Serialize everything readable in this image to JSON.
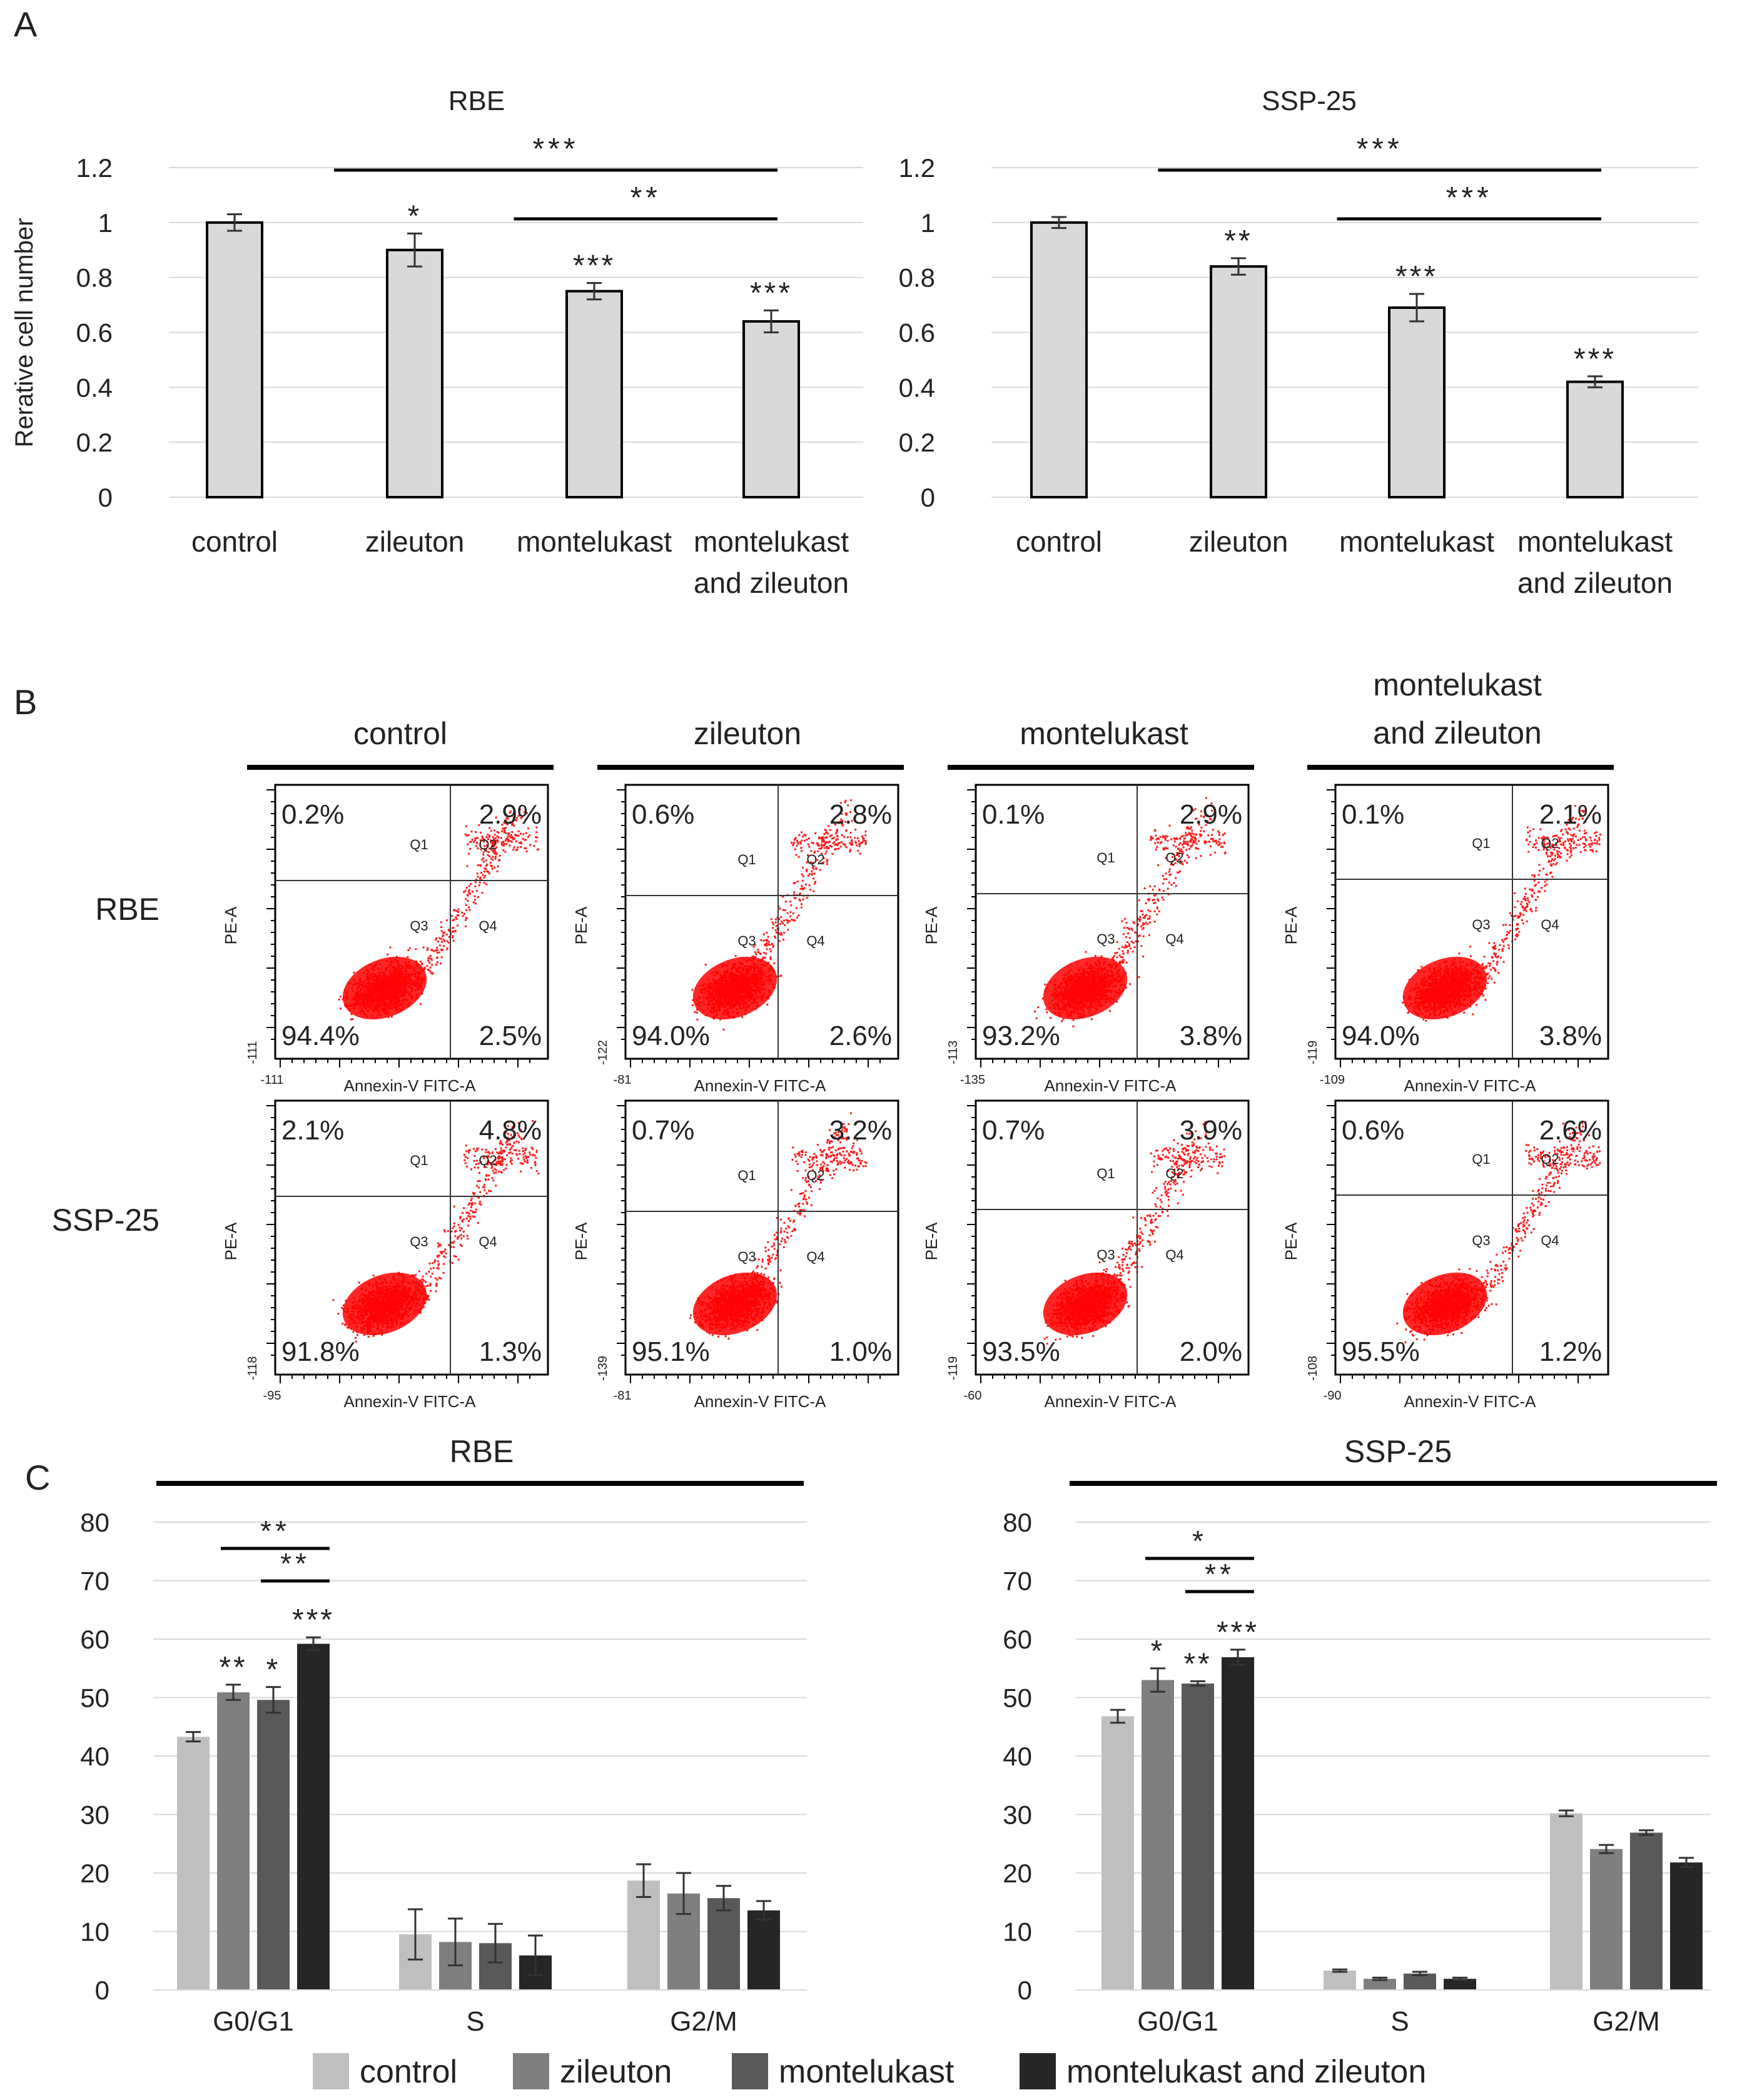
{
  "panels": {
    "a": "A",
    "b": "B",
    "c": "C"
  },
  "chart_data": [
    {
      "id": "A1",
      "type": "bar",
      "title": "RBE",
      "ylabel": "Rerative cell number",
      "categories": [
        "control",
        "zileuton",
        "montelukast",
        "montelukast and zileuton"
      ],
      "cat_lines": [
        [
          "control"
        ],
        [
          "zileuton"
        ],
        [
          "montelukast"
        ],
        [
          "montelukast",
          "and zileuton"
        ]
      ],
      "values": [
        1.0,
        0.9,
        0.75,
        0.64
      ],
      "errors": [
        0.03,
        0.06,
        0.03,
        0.04
      ],
      "ylim": [
        0,
        1.2
      ],
      "yticks": [
        "0",
        "0.2",
        "0.4",
        "0.6",
        "0.8",
        "1",
        "1.2"
      ],
      "stars": [
        "",
        "*",
        "***",
        "***"
      ],
      "brackets": [
        {
          "from": 1,
          "to": 3,
          "label": "***"
        },
        {
          "from": 2,
          "to": 3,
          "label": "**"
        }
      ]
    },
    {
      "id": "A2",
      "type": "bar",
      "title": "SSP-25",
      "ylabel": "",
      "categories": [
        "control",
        "zileuton",
        "montelukast",
        "montelukast and zileuton"
      ],
      "cat_lines": [
        [
          "control"
        ],
        [
          "zileuton"
        ],
        [
          "montelukast"
        ],
        [
          "montelukast",
          "and zileuton"
        ]
      ],
      "values": [
        1.0,
        0.84,
        0.69,
        0.42
      ],
      "errors": [
        0.02,
        0.03,
        0.05,
        0.02
      ],
      "ylim": [
        0,
        1.2
      ],
      "yticks": [
        "0",
        "0.2",
        "0.4",
        "0.6",
        "0.8",
        "1",
        "1.2"
      ],
      "stars": [
        "",
        "**",
        "***",
        "***"
      ],
      "brackets": [
        {
          "from": 1,
          "to": 3,
          "label": "***"
        },
        {
          "from": 2,
          "to": 3,
          "label": "***"
        }
      ]
    },
    {
      "id": "C1",
      "type": "bar",
      "title": "RBE",
      "categories": [
        "G0/G1",
        "S",
        "G2/M"
      ],
      "ylim": [
        0,
        80
      ],
      "yticks": [
        "0",
        "10",
        "20",
        "30",
        "40",
        "50",
        "60",
        "70",
        "80"
      ],
      "series": [
        {
          "name": "control",
          "color": "#bfbfbf",
          "values": [
            43.3,
            9.5,
            18.7
          ],
          "errors": [
            0.8,
            4.3,
            2.8
          ]
        },
        {
          "name": "zileuton",
          "color": "#7f7f7f",
          "values": [
            50.9,
            8.2,
            16.5
          ],
          "errors": [
            1.3,
            4.0,
            3.5
          ]
        },
        {
          "name": "montelukast",
          "color": "#595959",
          "values": [
            49.6,
            8.0,
            15.7
          ],
          "errors": [
            2.2,
            3.3,
            2.1
          ]
        },
        {
          "name": "montelukast and zileuton",
          "color": "#262626",
          "values": [
            59.2,
            5.9,
            13.6
          ],
          "errors": [
            1.1,
            3.4,
            1.6
          ]
        }
      ],
      "stars": [
        [
          "",
          "**",
          "*",
          "***"
        ],
        [
          "",
          "",
          "",
          ""
        ],
        [
          "",
          "",
          "",
          ""
        ]
      ],
      "brackets": [
        {
          "from": 1,
          "to": 3,
          "label": "**"
        },
        {
          "from": 2,
          "to": 3,
          "label": "**"
        }
      ]
    },
    {
      "id": "C2",
      "type": "bar",
      "title": "SSP-25",
      "categories": [
        "G0/G1",
        "S",
        "G2/M"
      ],
      "ylim": [
        0,
        80
      ],
      "yticks": [
        "0",
        "10",
        "20",
        "30",
        "40",
        "50",
        "60",
        "70",
        "80"
      ],
      "series": [
        {
          "name": "control",
          "color": "#bfbfbf",
          "values": [
            46.8,
            3.3,
            30.2
          ],
          "errors": [
            1.1,
            0.2,
            0.5
          ]
        },
        {
          "name": "zileuton",
          "color": "#7f7f7f",
          "values": [
            53.0,
            1.9,
            24.1
          ],
          "errors": [
            2.0,
            0.2,
            0.7
          ]
        },
        {
          "name": "montelukast",
          "color": "#595959",
          "values": [
            52.4,
            2.8,
            26.9
          ],
          "errors": [
            0.4,
            0.3,
            0.4
          ]
        },
        {
          "name": "montelukast and zileuton",
          "color": "#262626",
          "values": [
            56.9,
            1.9,
            21.8
          ],
          "errors": [
            1.3,
            0.2,
            0.8
          ]
        }
      ],
      "stars": [
        [
          "",
          "*",
          "**",
          "***"
        ],
        [
          "",
          "",
          "",
          ""
        ],
        [
          "",
          "",
          "",
          ""
        ]
      ],
      "brackets": [
        {
          "from": 1,
          "to": 3,
          "label": "*"
        },
        {
          "from": 2,
          "to": 3,
          "label": "**"
        }
      ]
    }
  ],
  "flow": {
    "conditions": [
      [
        "control"
      ],
      [
        "zileuton"
      ],
      [
        "montelukast"
      ],
      [
        "montelukast",
        "and zileuton"
      ]
    ],
    "cell_lines": [
      "RBE",
      "SSP-25"
    ],
    "xlabel": "Annexin-V FITC-A",
    "ylabel": "PE-A",
    "quadrant_labels": [
      "Q1",
      "Q2",
      "Q3",
      "Q4"
    ],
    "rows": [
      [
        {
          "q1": "0.2%",
          "q2": "2.9%",
          "q3": "94.4%",
          "q4": "2.5%",
          "xmin": "-111",
          "ymin": "-111"
        },
        {
          "q1": "0.6%",
          "q2": "2.8%",
          "q3": "94.0%",
          "q4": "2.6%",
          "xmin": "-81",
          "ymin": "-122"
        },
        {
          "q1": "0.1%",
          "q2": "2.9%",
          "q3": "93.2%",
          "q4": "3.8%",
          "xmin": "-135",
          "ymin": "-113"
        },
        {
          "q1": "0.1%",
          "q2": "2.1%",
          "q3": "94.0%",
          "q4": "3.8%",
          "xmin": "-109",
          "ymin": "-119"
        }
      ],
      [
        {
          "q1": "2.1%",
          "q2": "4.8%",
          "q3": "91.8%",
          "q4": "1.3%",
          "xmin": "-95",
          "ymin": "-118"
        },
        {
          "q1": "0.7%",
          "q2": "3.2%",
          "q3": "95.1%",
          "q4": "1.0%",
          "xmin": "-81",
          "ymin": "-139"
        },
        {
          "q1": "0.7%",
          "q2": "3.9%",
          "q3": "93.5%",
          "q4": "2.0%",
          "xmin": "-60",
          "ymin": "-119"
        },
        {
          "q1": "0.6%",
          "q2": "2.6%",
          "q3": "95.5%",
          "q4": "1.2%",
          "xmin": "-90",
          "ymin": "-108"
        }
      ]
    ]
  },
  "legend": {
    "items": [
      {
        "label": "control",
        "color": "#bfbfbf"
      },
      {
        "label": "zileuton",
        "color": "#7f7f7f"
      },
      {
        "label": "montelukast",
        "color": "#595959"
      },
      {
        "label": "montelukast and zileuton",
        "color": "#262626"
      }
    ]
  }
}
